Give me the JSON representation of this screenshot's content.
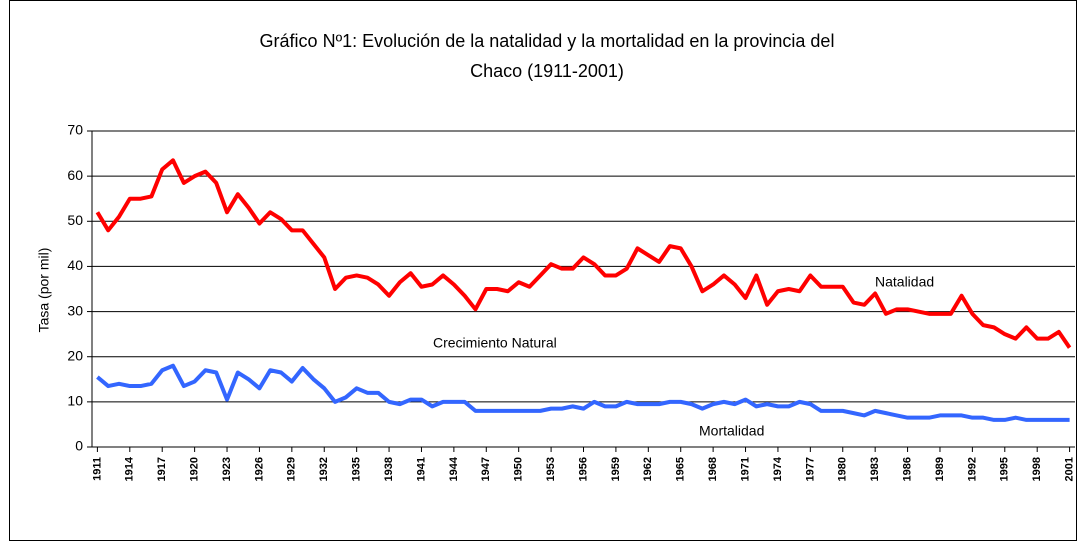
{
  "chart_data": {
    "type": "line",
    "title": [
      "Gráfico Nº1: Evolución de la natalidad y la mortalidad en la provincia del",
      "Chaco (1911-2001)"
    ],
    "ylabel": "Tasa (por mil)",
    "annotations": [
      "Crecimiento Natural"
    ],
    "x": [
      1911,
      1912,
      1913,
      1914,
      1915,
      1916,
      1917,
      1918,
      1919,
      1920,
      1921,
      1922,
      1923,
      1924,
      1925,
      1926,
      1927,
      1928,
      1929,
      1930,
      1931,
      1932,
      1933,
      1934,
      1935,
      1936,
      1937,
      1938,
      1939,
      1940,
      1941,
      1942,
      1943,
      1944,
      1945,
      1946,
      1947,
      1948,
      1949,
      1950,
      1951,
      1952,
      1953,
      1954,
      1955,
      1956,
      1957,
      1958,
      1959,
      1960,
      1961,
      1962,
      1963,
      1964,
      1965,
      1966,
      1967,
      1968,
      1969,
      1970,
      1971,
      1972,
      1973,
      1974,
      1975,
      1976,
      1977,
      1978,
      1979,
      1980,
      1981,
      1982,
      1983,
      1984,
      1985,
      1986,
      1987,
      1988,
      1989,
      1990,
      1991,
      1992,
      1993,
      1994,
      1995,
      1996,
      1997,
      1998,
      1999,
      2000,
      2001
    ],
    "series": [
      {
        "name": "Natalidad",
        "color": "#ff0000",
        "values": [
          52,
          48,
          51,
          55,
          55,
          55.5,
          61.5,
          63.5,
          58.5,
          60,
          61,
          58.5,
          52,
          56,
          53,
          49.5,
          52,
          50.5,
          48,
          48,
          45,
          42,
          35,
          37.5,
          38,
          37.5,
          36,
          33.5,
          36.5,
          38.5,
          35.5,
          36,
          38,
          36,
          33.5,
          30.5,
          35,
          35,
          34.5,
          36.5,
          35.5,
          38,
          40.5,
          39.5,
          39.5,
          42,
          40.5,
          38,
          38,
          39.5,
          44,
          42.5,
          41,
          44.5,
          44,
          40,
          34.5,
          36,
          38,
          36,
          33,
          38,
          31.5,
          34.5,
          35,
          34.5,
          38,
          35.5,
          35.5,
          35.5,
          32,
          31.5,
          34,
          29.5,
          30.5,
          30.5,
          30,
          29.5,
          29.5,
          29.5,
          33.5,
          29.5,
          27,
          26.5,
          25,
          24,
          26.5,
          24,
          24,
          25.5,
          22
        ]
      },
      {
        "name": "Mortalidad",
        "color": "#3366ff",
        "values": [
          15.5,
          13.5,
          14,
          13.5,
          13.5,
          14,
          17,
          18,
          13.5,
          14.5,
          17,
          16.5,
          10.5,
          16.5,
          15,
          13,
          17,
          16.5,
          14.5,
          17.5,
          15,
          13,
          10,
          11,
          13,
          12,
          12,
          10,
          9.5,
          10.5,
          10.5,
          9,
          10,
          10,
          10,
          8,
          8,
          8,
          8,
          8,
          8,
          8,
          8.5,
          8.5,
          9,
          8.5,
          10,
          9,
          9,
          10,
          9.5,
          9.5,
          9.5,
          10,
          10,
          9.5,
          8.5,
          9.5,
          10,
          9.5,
          10.5,
          9,
          9.5,
          9,
          9,
          10,
          9.5,
          8,
          8,
          8,
          7.5,
          7,
          8,
          7.5,
          7,
          6.5,
          6.5,
          6.5,
          7,
          7,
          7,
          6.5,
          6.5,
          6,
          6,
          6.5,
          6,
          6,
          6,
          6,
          6
        ]
      }
    ],
    "xlim": [
      1910.5,
      2001.5
    ],
    "xticks": [
      1911,
      1914,
      1917,
      1920,
      1923,
      1926,
      1929,
      1932,
      1935,
      1938,
      1941,
      1944,
      1947,
      1950,
      1953,
      1956,
      1959,
      1962,
      1965,
      1968,
      1971,
      1974,
      1977,
      1980,
      1983,
      1986,
      1989,
      1992,
      1995,
      1998,
      2001
    ],
    "ylim": [
      0,
      70
    ],
    "yticks": [
      0,
      10,
      20,
      30,
      40,
      50,
      60,
      70
    ],
    "grid": true
  }
}
